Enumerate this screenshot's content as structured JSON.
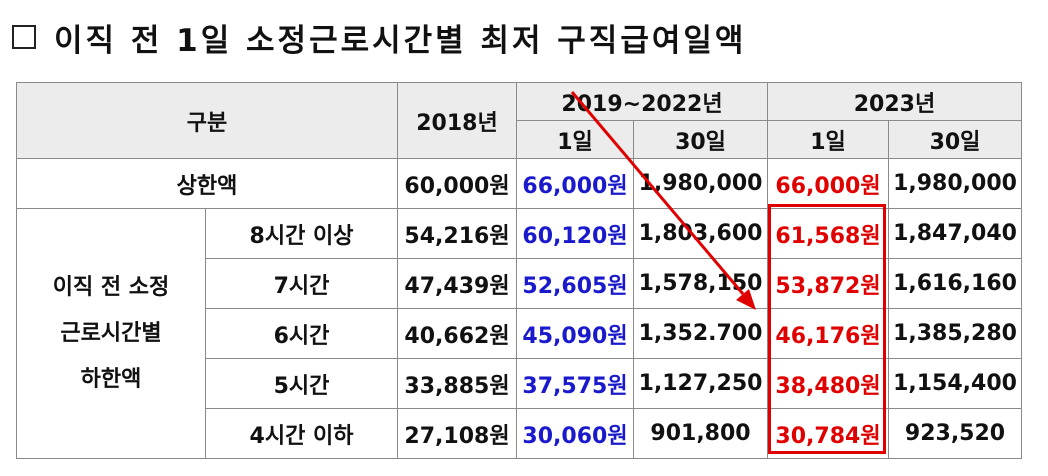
{
  "title": "이직 전 1일 소정근로시간별 최저 구직급여일액",
  "colors": {
    "blue": "#1a1acc",
    "red": "#e00000",
    "header_bg": "#ececec"
  },
  "table": {
    "header": {
      "category": "구분",
      "y2018": "2018년",
      "y2019_2022": "2019~2022년",
      "y2023": "2023년",
      "day1_a": "1일",
      "day30_a": "30일",
      "day1_b": "1일",
      "day30_b": "30일"
    },
    "upper": {
      "label": "상한액",
      "v2018": "60,000원",
      "v2019_1": "66,000원",
      "v2019_30": "1,980,000",
      "v2023_1": "66,000원",
      "v2023_30": "1,980,000"
    },
    "lower_group_label": [
      "이직 전 소정",
      "근로시간별",
      "하한액"
    ],
    "rows": [
      {
        "label": "8시간 이상",
        "v2018": "54,216원",
        "v2019_1": "60,120원",
        "v2019_30": "1,803,600",
        "v2023_1": "61,568원",
        "v2023_30": "1,847,040"
      },
      {
        "label": "7시간",
        "v2018": "47,439원",
        "v2019_1": "52,605원",
        "v2019_30": "1,578,150",
        "v2023_1": "53,872원",
        "v2023_30": "1,616,160"
      },
      {
        "label": "6시간",
        "v2018": "40,662원",
        "v2019_1": "45,090원",
        "v2019_30": "1,352.700",
        "v2023_1": "46,176원",
        "v2023_30": "1,385,280"
      },
      {
        "label": "5시간",
        "v2018": "33,885원",
        "v2019_1": "37,575원",
        "v2019_30": "1,127,250",
        "v2023_1": "38,480원",
        "v2023_30": "1,154,400"
      },
      {
        "label": "4시간 이하",
        "v2018": "27,108원",
        "v2019_1": "30,060원",
        "v2019_30": "901,800",
        "v2023_1": "30,784원",
        "v2023_30": "923,520"
      }
    ]
  }
}
